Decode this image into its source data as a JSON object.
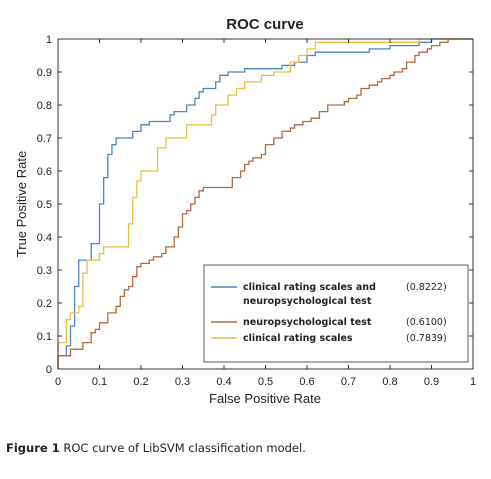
{
  "caption": {
    "label": "Figure 1",
    "text": "ROC curve of LibSVM classification model."
  },
  "chart_data": {
    "type": "line",
    "title": "ROC curve",
    "xlabel": "False Positive Rate",
    "ylabel": "True Positive Rate",
    "xlim": [
      0,
      1
    ],
    "ylim": [
      0,
      1
    ],
    "x_ticks": [
      "0",
      "0.1",
      "0.2",
      "0.3",
      "0.4",
      "0.5",
      "0.6",
      "0.7",
      "0.8",
      "0.9",
      "1"
    ],
    "y_ticks": [
      "0",
      "0.1",
      "0.2",
      "0.3",
      "0.4",
      "0.5",
      "0.6",
      "0.7",
      "0.8",
      "0.9",
      "1"
    ],
    "grid": false,
    "legend_position": "bottom-right",
    "series": [
      {
        "name_lines": [
          "clinical rating scales and",
          "neuropsychological test"
        ],
        "value_label": "(0.8222)",
        "color": "#4a86c0",
        "points": [
          [
            0,
            0
          ],
          [
            0,
            0.04
          ],
          [
            0.02,
            0.04
          ],
          [
            0.02,
            0.07
          ],
          [
            0.03,
            0.07
          ],
          [
            0.03,
            0.13
          ],
          [
            0.04,
            0.13
          ],
          [
            0.04,
            0.25
          ],
          [
            0.05,
            0.25
          ],
          [
            0.05,
            0.33
          ],
          [
            0.08,
            0.33
          ],
          [
            0.08,
            0.38
          ],
          [
            0.1,
            0.38
          ],
          [
            0.1,
            0.5
          ],
          [
            0.11,
            0.5
          ],
          [
            0.11,
            0.58
          ],
          [
            0.12,
            0.58
          ],
          [
            0.12,
            0.65
          ],
          [
            0.13,
            0.65
          ],
          [
            0.13,
            0.68
          ],
          [
            0.14,
            0.68
          ],
          [
            0.14,
            0.7
          ],
          [
            0.18,
            0.7
          ],
          [
            0.18,
            0.72
          ],
          [
            0.2,
            0.72
          ],
          [
            0.2,
            0.74
          ],
          [
            0.22,
            0.74
          ],
          [
            0.22,
            0.75
          ],
          [
            0.27,
            0.75
          ],
          [
            0.27,
            0.77
          ],
          [
            0.28,
            0.77
          ],
          [
            0.28,
            0.78
          ],
          [
            0.31,
            0.78
          ],
          [
            0.31,
            0.8
          ],
          [
            0.33,
            0.8
          ],
          [
            0.33,
            0.82
          ],
          [
            0.34,
            0.82
          ],
          [
            0.34,
            0.84
          ],
          [
            0.35,
            0.84
          ],
          [
            0.35,
            0.85
          ],
          [
            0.38,
            0.85
          ],
          [
            0.38,
            0.87
          ],
          [
            0.39,
            0.87
          ],
          [
            0.39,
            0.89
          ],
          [
            0.41,
            0.89
          ],
          [
            0.41,
            0.9
          ],
          [
            0.45,
            0.9
          ],
          [
            0.45,
            0.91
          ],
          [
            0.54,
            0.91
          ],
          [
            0.54,
            0.92
          ],
          [
            0.57,
            0.92
          ],
          [
            0.57,
            0.93
          ],
          [
            0.6,
            0.93
          ],
          [
            0.6,
            0.95
          ],
          [
            0.62,
            0.95
          ],
          [
            0.62,
            0.96
          ],
          [
            0.75,
            0.96
          ],
          [
            0.75,
            0.97
          ],
          [
            0.8,
            0.97
          ],
          [
            0.8,
            0.98
          ],
          [
            0.87,
            0.98
          ],
          [
            0.87,
            0.99
          ],
          [
            0.9,
            0.99
          ],
          [
            0.9,
            1
          ],
          [
            1,
            1
          ]
        ]
      },
      {
        "name_lines": [
          "neuropsychological test"
        ],
        "value_label": "(0.6100)",
        "color": "#b8683e",
        "points": [
          [
            0,
            0
          ],
          [
            0,
            0.04
          ],
          [
            0.03,
            0.04
          ],
          [
            0.03,
            0.06
          ],
          [
            0.06,
            0.06
          ],
          [
            0.06,
            0.08
          ],
          [
            0.08,
            0.08
          ],
          [
            0.08,
            0.11
          ],
          [
            0.09,
            0.11
          ],
          [
            0.09,
            0.12
          ],
          [
            0.1,
            0.12
          ],
          [
            0.1,
            0.14
          ],
          [
            0.12,
            0.14
          ],
          [
            0.12,
            0.17
          ],
          [
            0.14,
            0.17
          ],
          [
            0.14,
            0.19
          ],
          [
            0.15,
            0.19
          ],
          [
            0.15,
            0.22
          ],
          [
            0.16,
            0.22
          ],
          [
            0.16,
            0.24
          ],
          [
            0.17,
            0.24
          ],
          [
            0.17,
            0.25
          ],
          [
            0.18,
            0.25
          ],
          [
            0.18,
            0.28
          ],
          [
            0.19,
            0.28
          ],
          [
            0.19,
            0.31
          ],
          [
            0.2,
            0.31
          ],
          [
            0.2,
            0.32
          ],
          [
            0.22,
            0.32
          ],
          [
            0.22,
            0.33
          ],
          [
            0.23,
            0.33
          ],
          [
            0.23,
            0.34
          ],
          [
            0.25,
            0.34
          ],
          [
            0.25,
            0.35
          ],
          [
            0.26,
            0.35
          ],
          [
            0.26,
            0.37
          ],
          [
            0.28,
            0.37
          ],
          [
            0.28,
            0.4
          ],
          [
            0.29,
            0.4
          ],
          [
            0.29,
            0.43
          ],
          [
            0.3,
            0.43
          ],
          [
            0.3,
            0.47
          ],
          [
            0.31,
            0.47
          ],
          [
            0.31,
            0.48
          ],
          [
            0.32,
            0.48
          ],
          [
            0.32,
            0.5
          ],
          [
            0.33,
            0.5
          ],
          [
            0.33,
            0.52
          ],
          [
            0.34,
            0.52
          ],
          [
            0.34,
            0.54
          ],
          [
            0.35,
            0.54
          ],
          [
            0.35,
            0.55
          ],
          [
            0.42,
            0.55
          ],
          [
            0.42,
            0.58
          ],
          [
            0.44,
            0.58
          ],
          [
            0.44,
            0.6
          ],
          [
            0.45,
            0.6
          ],
          [
            0.45,
            0.62
          ],
          [
            0.46,
            0.62
          ],
          [
            0.46,
            0.63
          ],
          [
            0.47,
            0.63
          ],
          [
            0.47,
            0.64
          ],
          [
            0.49,
            0.64
          ],
          [
            0.49,
            0.65
          ],
          [
            0.5,
            0.65
          ],
          [
            0.5,
            0.68
          ],
          [
            0.52,
            0.68
          ],
          [
            0.52,
            0.7
          ],
          [
            0.54,
            0.7
          ],
          [
            0.54,
            0.72
          ],
          [
            0.56,
            0.72
          ],
          [
            0.56,
            0.73
          ],
          [
            0.57,
            0.73
          ],
          [
            0.57,
            0.74
          ],
          [
            0.59,
            0.74
          ],
          [
            0.59,
            0.75
          ],
          [
            0.61,
            0.75
          ],
          [
            0.61,
            0.76
          ],
          [
            0.63,
            0.76
          ],
          [
            0.63,
            0.78
          ],
          [
            0.65,
            0.78
          ],
          [
            0.65,
            0.8
          ],
          [
            0.69,
            0.8
          ],
          [
            0.69,
            0.81
          ],
          [
            0.7,
            0.81
          ],
          [
            0.7,
            0.82
          ],
          [
            0.72,
            0.82
          ],
          [
            0.72,
            0.83
          ],
          [
            0.73,
            0.83
          ],
          [
            0.73,
            0.85
          ],
          [
            0.75,
            0.85
          ],
          [
            0.75,
            0.86
          ],
          [
            0.77,
            0.86
          ],
          [
            0.77,
            0.87
          ],
          [
            0.78,
            0.87
          ],
          [
            0.78,
            0.88
          ],
          [
            0.8,
            0.88
          ],
          [
            0.8,
            0.89
          ],
          [
            0.81,
            0.89
          ],
          [
            0.81,
            0.9
          ],
          [
            0.83,
            0.9
          ],
          [
            0.83,
            0.91
          ],
          [
            0.84,
            0.91
          ],
          [
            0.84,
            0.93
          ],
          [
            0.86,
            0.93
          ],
          [
            0.86,
            0.95
          ],
          [
            0.87,
            0.95
          ],
          [
            0.87,
            0.96
          ],
          [
            0.89,
            0.96
          ],
          [
            0.89,
            0.97
          ],
          [
            0.9,
            0.97
          ],
          [
            0.9,
            0.98
          ],
          [
            0.92,
            0.98
          ],
          [
            0.92,
            0.99
          ],
          [
            0.94,
            0.99
          ],
          [
            0.94,
            1
          ],
          [
            1,
            1
          ]
        ]
      },
      {
        "name_lines": [
          "clinical rating scales"
        ],
        "value_label": "(0.7839)",
        "color": "#e8c143",
        "points": [
          [
            0,
            0
          ],
          [
            0,
            0.08
          ],
          [
            0.02,
            0.08
          ],
          [
            0.02,
            0.15
          ],
          [
            0.03,
            0.15
          ],
          [
            0.03,
            0.17
          ],
          [
            0.05,
            0.17
          ],
          [
            0.05,
            0.19
          ],
          [
            0.06,
            0.19
          ],
          [
            0.06,
            0.29
          ],
          [
            0.07,
            0.29
          ],
          [
            0.07,
            0.33
          ],
          [
            0.1,
            0.33
          ],
          [
            0.1,
            0.35
          ],
          [
            0.11,
            0.35
          ],
          [
            0.11,
            0.37
          ],
          [
            0.17,
            0.37
          ],
          [
            0.17,
            0.44
          ],
          [
            0.18,
            0.44
          ],
          [
            0.18,
            0.52
          ],
          [
            0.19,
            0.52
          ],
          [
            0.19,
            0.57
          ],
          [
            0.2,
            0.57
          ],
          [
            0.2,
            0.6
          ],
          [
            0.24,
            0.6
          ],
          [
            0.24,
            0.67
          ],
          [
            0.26,
            0.67
          ],
          [
            0.26,
            0.7
          ],
          [
            0.31,
            0.7
          ],
          [
            0.31,
            0.74
          ],
          [
            0.37,
            0.74
          ],
          [
            0.37,
            0.77
          ],
          [
            0.38,
            0.77
          ],
          [
            0.38,
            0.8
          ],
          [
            0.41,
            0.8
          ],
          [
            0.41,
            0.83
          ],
          [
            0.43,
            0.83
          ],
          [
            0.43,
            0.85
          ],
          [
            0.45,
            0.85
          ],
          [
            0.45,
            0.87
          ],
          [
            0.49,
            0.87
          ],
          [
            0.49,
            0.89
          ],
          [
            0.52,
            0.89
          ],
          [
            0.52,
            0.9
          ],
          [
            0.56,
            0.9
          ],
          [
            0.56,
            0.93
          ],
          [
            0.58,
            0.93
          ],
          [
            0.58,
            0.95
          ],
          [
            0.6,
            0.95
          ],
          [
            0.6,
            0.97
          ],
          [
            0.62,
            0.97
          ],
          [
            0.62,
            0.99
          ],
          [
            0.87,
            0.99
          ],
          [
            0.87,
            1
          ],
          [
            1,
            1
          ]
        ]
      }
    ]
  }
}
